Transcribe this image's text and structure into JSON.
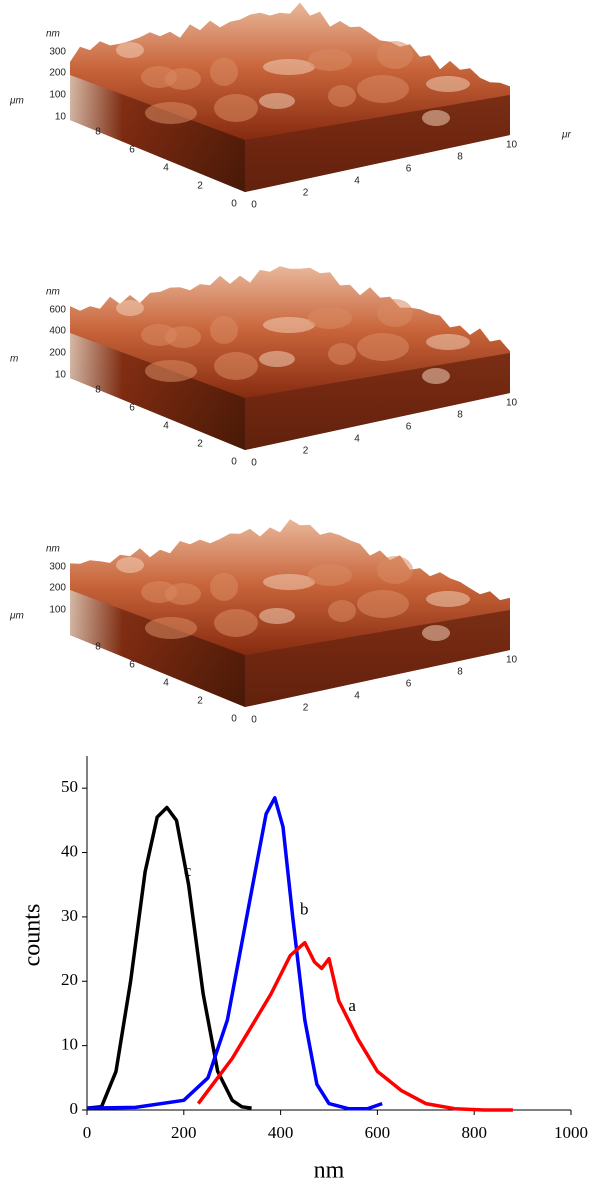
{
  "afm_panels": [
    {
      "z_unit": "nm",
      "z_ticks": [
        300,
        200,
        100,
        10
      ],
      "y_unit": "μm",
      "y_ticks": [
        8,
        6,
        4,
        2,
        0
      ],
      "x_ticks": [
        0,
        2,
        4,
        6,
        8,
        10
      ],
      "x_unit": "μr"
    },
    {
      "z_unit": "nm",
      "z_ticks": [
        600,
        400,
        200,
        10
      ],
      "y_unit": "m",
      "y_ticks": [
        8,
        6,
        4,
        2,
        0
      ],
      "x_ticks": [
        0,
        2,
        4,
        6,
        8,
        10
      ]
    },
    {
      "z_unit": "nm",
      "z_ticks": [
        300,
        200,
        100
      ],
      "y_unit": "μm",
      "y_ticks": [
        8,
        6,
        4,
        2,
        0
      ],
      "x_ticks": [
        0,
        2,
        4,
        6,
        8,
        10
      ]
    }
  ],
  "chart_data": {
    "type": "line",
    "x_label": "nm",
    "y_label": "counts",
    "xlim": [
      0,
      1000
    ],
    "xticks": [
      0,
      200,
      400,
      600,
      800,
      1000
    ],
    "ylim": [
      0,
      55
    ],
    "yticks": [
      0,
      10,
      20,
      30,
      40,
      50
    ],
    "series": [
      {
        "name": "c",
        "color": "#000000",
        "x": [
          0,
          30,
          60,
          90,
          120,
          145,
          165,
          185,
          210,
          240,
          270,
          300,
          320,
          340
        ],
        "values": [
          0.3,
          0.5,
          6,
          20,
          37,
          45.5,
          47,
          45,
          35,
          18,
          6,
          1.5,
          0.5,
          0.3
        ]
      },
      {
        "name": "b",
        "color": "#0000ff",
        "x": [
          0,
          100,
          200,
          250,
          290,
          320,
          350,
          370,
          388,
          405,
          425,
          450,
          475,
          500,
          540,
          580,
          610
        ],
        "values": [
          0.3,
          0.4,
          1.5,
          5,
          14,
          26,
          38,
          46,
          48.5,
          44,
          30,
          14,
          4,
          1,
          0.2,
          0.2,
          1
        ]
      },
      {
        "name": "a",
        "color": "#ff0000",
        "x": [
          230,
          270,
          300,
          340,
          380,
          420,
          450,
          470,
          485,
          500,
          520,
          560,
          600,
          650,
          700,
          760,
          820,
          880
        ],
        "values": [
          1,
          5,
          8,
          13,
          18,
          24,
          26,
          23,
          22,
          23.5,
          17,
          11,
          6,
          3,
          1,
          0.2,
          0,
          0
        ]
      }
    ]
  }
}
